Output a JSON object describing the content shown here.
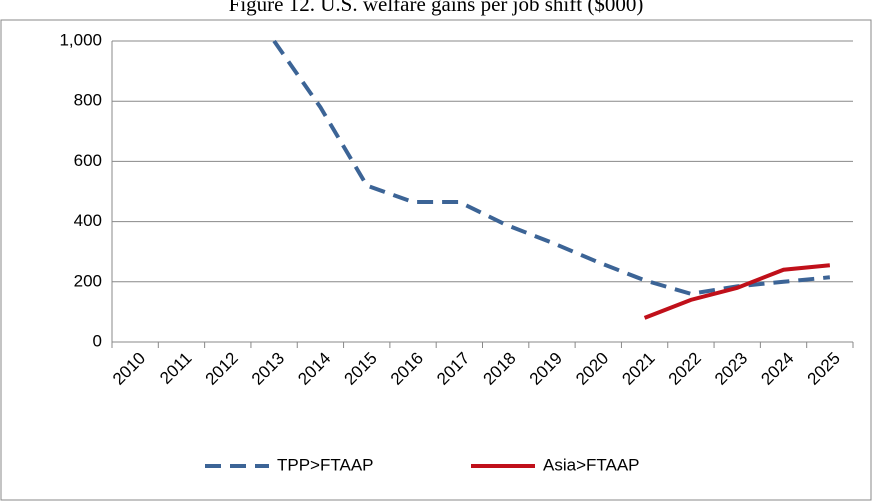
{
  "chart_data": {
    "type": "line",
    "title": "Figure 12.  U.S. welfare gains per job shift ($000)",
    "categories": [
      "2010",
      "2011",
      "2012",
      "2013",
      "2014",
      "2015",
      "2016",
      "2017",
      "2018",
      "2019",
      "2020",
      "2021",
      "2022",
      "2023",
      "2024",
      "2025"
    ],
    "series": [
      {
        "name": "TPP>FTAAP",
        "color": "#3c6496",
        "dashed": true,
        "values": [
          null,
          null,
          null,
          1000,
          780,
          520,
          465,
          465,
          390,
          330,
          265,
          205,
          160,
          185,
          200,
          215
        ]
      },
      {
        "name": "Asia>FTAAP",
        "color": "#c0101a",
        "dashed": false,
        "values": [
          null,
          null,
          null,
          null,
          null,
          null,
          null,
          null,
          null,
          null,
          null,
          80,
          140,
          180,
          240,
          255
        ]
      }
    ],
    "ylim": [
      0,
      1000
    ],
    "yticks": [
      0,
      200,
      400,
      600,
      800,
      {
        "value": 1000,
        "label": "1,000"
      }
    ],
    "grid": true,
    "legend": "bottom"
  }
}
